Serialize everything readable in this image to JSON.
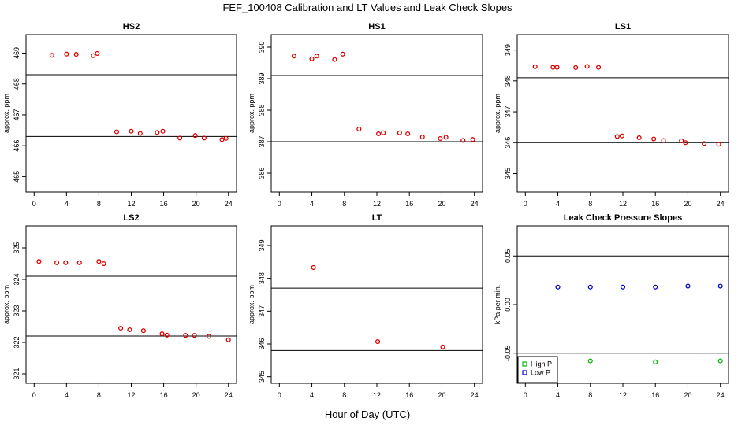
{
  "figure": {
    "title": "FEF_100408  Calibration and LT Values and Leak Check Slopes",
    "xlabel": "Hour of Day (UTC)"
  },
  "colors": {
    "red": "#dd0000",
    "blue": "#0000cc",
    "green": "#00bb00",
    "axis": "#000000"
  },
  "chart_data": [
    {
      "type": "scatter",
      "title": "HS2",
      "ylabel": "approx. ppm",
      "xlim": [
        -1,
        25
      ],
      "ylim": [
        464.5,
        469.6
      ],
      "xticks": [
        0,
        4,
        8,
        12,
        16,
        20,
        24
      ],
      "yticks": [
        465,
        466,
        467,
        468,
        469
      ],
      "hlines": [
        468.3,
        466.3
      ],
      "series": [
        {
          "color": "red",
          "points": [
            [
              2.2,
              468.93
            ],
            [
              4.0,
              468.97
            ],
            [
              5.2,
              468.96
            ],
            [
              7.3,
              468.92
            ],
            [
              7.8,
              468.99
            ],
            [
              10.2,
              466.45
            ],
            [
              12.0,
              466.47
            ],
            [
              13.1,
              466.4
            ],
            [
              15.2,
              466.43
            ],
            [
              15.9,
              466.47
            ],
            [
              18.0,
              466.25
            ],
            [
              19.9,
              466.33
            ],
            [
              21.0,
              466.25
            ],
            [
              23.2,
              466.2
            ],
            [
              23.7,
              466.24
            ]
          ]
        }
      ]
    },
    {
      "type": "scatter",
      "title": "HS1",
      "ylabel": "approx. ppm",
      "xlim": [
        -1,
        25
      ],
      "ylim": [
        385.4,
        390.4
      ],
      "xticks": [
        0,
        4,
        8,
        12,
        16,
        20,
        24
      ],
      "yticks": [
        386,
        387,
        388,
        389,
        390
      ],
      "hlines": [
        389.1,
        387.0
      ],
      "series": [
        {
          "color": "red",
          "points": [
            [
              1.8,
              389.72
            ],
            [
              4.0,
              389.63
            ],
            [
              4.6,
              389.72
            ],
            [
              6.8,
              389.61
            ],
            [
              7.8,
              389.78
            ],
            [
              9.8,
              387.4
            ],
            [
              12.2,
              387.25
            ],
            [
              12.8,
              387.28
            ],
            [
              14.8,
              387.28
            ],
            [
              15.8,
              387.25
            ],
            [
              17.6,
              387.15
            ],
            [
              19.8,
              387.1
            ],
            [
              20.5,
              387.14
            ],
            [
              22.6,
              387.04
            ],
            [
              23.8,
              387.07
            ]
          ]
        }
      ]
    },
    {
      "type": "scatter",
      "title": "LS1",
      "ylabel": "approx. ppm",
      "xlim": [
        -1,
        25
      ],
      "ylim": [
        344.4,
        349.5
      ],
      "xticks": [
        0,
        4,
        8,
        12,
        16,
        20,
        24
      ],
      "yticks": [
        345,
        346,
        347,
        348,
        349
      ],
      "hlines": [
        348.1,
        346.0
      ],
      "series": [
        {
          "color": "red",
          "points": [
            [
              1.2,
              348.46
            ],
            [
              3.4,
              348.44
            ],
            [
              3.9,
              348.44
            ],
            [
              6.2,
              348.43
            ],
            [
              7.6,
              348.47
            ],
            [
              9.0,
              348.44
            ],
            [
              11.3,
              346.2
            ],
            [
              11.9,
              346.22
            ],
            [
              14.0,
              346.16
            ],
            [
              15.8,
              346.12
            ],
            [
              17.0,
              346.07
            ],
            [
              19.2,
              346.06
            ],
            [
              19.7,
              346.0
            ],
            [
              22.0,
              345.97
            ],
            [
              23.8,
              345.95
            ]
          ]
        }
      ]
    },
    {
      "type": "scatter",
      "title": "LS2",
      "ylabel": "approx. ppm",
      "xlim": [
        -1,
        25
      ],
      "ylim": [
        320.7,
        325.7
      ],
      "xticks": [
        0,
        4,
        8,
        12,
        16,
        20,
        24
      ],
      "yticks": [
        321,
        322,
        323,
        324,
        325
      ],
      "hlines": [
        324.1,
        322.2
      ],
      "series": [
        {
          "color": "red",
          "points": [
            [
              0.6,
              324.57
            ],
            [
              2.8,
              324.53
            ],
            [
              3.9,
              324.53
            ],
            [
              5.6,
              324.53
            ],
            [
              8.0,
              324.57
            ],
            [
              8.6,
              324.5
            ],
            [
              10.7,
              322.45
            ],
            [
              11.8,
              322.4
            ],
            [
              13.5,
              322.37
            ],
            [
              15.8,
              322.27
            ],
            [
              16.4,
              322.23
            ],
            [
              18.7,
              322.22
            ],
            [
              19.8,
              322.22
            ],
            [
              21.6,
              322.19
            ],
            [
              24.0,
              322.08
            ]
          ]
        }
      ]
    },
    {
      "type": "scatter",
      "title": "LT",
      "ylabel": "approx. ppm",
      "xlim": [
        -1,
        25
      ],
      "ylim": [
        344.8,
        349.6
      ],
      "xticks": [
        0,
        4,
        8,
        12,
        16,
        20,
        24
      ],
      "yticks": [
        345,
        346,
        347,
        348,
        349
      ],
      "hlines": [
        347.7,
        345.8
      ],
      "series": [
        {
          "color": "red",
          "points": [
            [
              4.2,
              348.33
            ],
            [
              12.1,
              346.07
            ],
            [
              20.1,
              345.91
            ]
          ]
        }
      ]
    },
    {
      "type": "scatter",
      "title": "Leak Check Pressure Slopes",
      "ylabel": "kPa per min.",
      "xlim": [
        -1,
        25
      ],
      "ylim": [
        -0.081,
        0.081
      ],
      "xticks": [
        0,
        4,
        8,
        12,
        16,
        20,
        24
      ],
      "yticks": [
        -0.05,
        0.0,
        0.05
      ],
      "ytick_labels": [
        "-0.05",
        "0.00",
        "0.05"
      ],
      "hlines": [
        0.05,
        -0.05
      ],
      "legend": {
        "position": "bottom-left",
        "entries": [
          "High P",
          "Low P"
        ]
      },
      "series": [
        {
          "name": "High P",
          "color": "green",
          "marker": "circle",
          "points": [
            [
              8.0,
              -0.058
            ],
            [
              16.0,
              -0.059
            ],
            [
              24.0,
              -0.058
            ]
          ]
        },
        {
          "name": "Low P",
          "color": "blue",
          "marker": "circle",
          "points": [
            [
              4.0,
              0.018
            ],
            [
              8.0,
              0.018
            ],
            [
              12.0,
              0.018
            ],
            [
              16.0,
              0.018
            ],
            [
              20.0,
              0.019
            ],
            [
              24.0,
              0.019
            ]
          ]
        }
      ]
    }
  ]
}
